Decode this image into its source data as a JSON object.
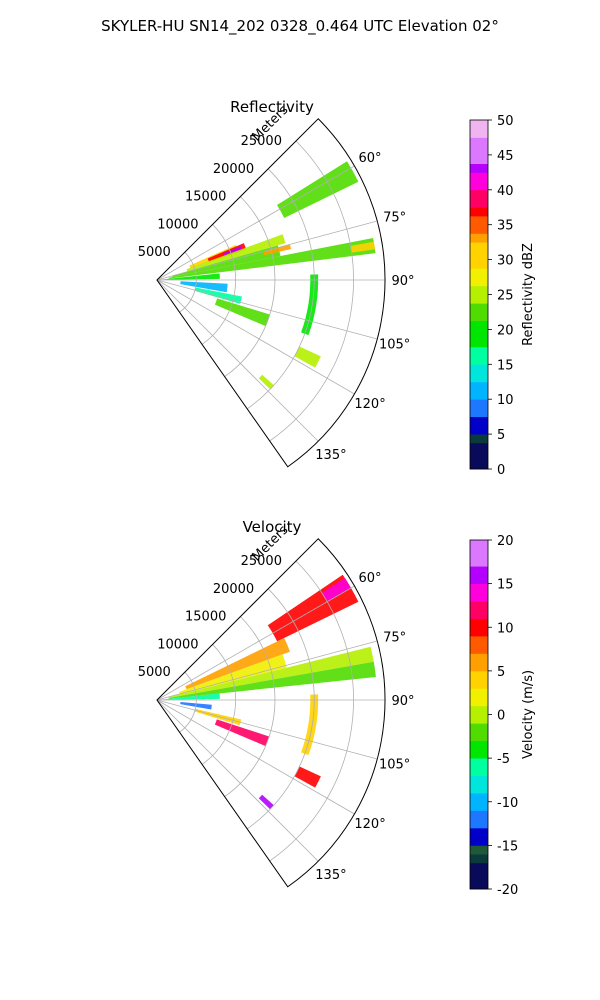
{
  "figure": {
    "title": "SKYLER-HU  SN14_202  0328_0.464 UTC Elevation 02°"
  },
  "chart_data": [
    {
      "type": "polar_ppi",
      "title": "Reflectivity",
      "range_label": "Meters",
      "range_ticks": [
        5000,
        10000,
        15000,
        20000,
        25000
      ],
      "range_max": 29000,
      "azimuth_range": [
        45,
        145
      ],
      "azimuth_ticks": [
        "60°",
        "75°",
        "90°",
        "105°",
        "120°",
        "135°"
      ],
      "azimuth_tick_values": [
        60,
        75,
        90,
        105,
        120,
        135
      ],
      "colorbar": {
        "label": "Reflectivity dBZ",
        "range": [
          0,
          50
        ],
        "ticks": [
          "0",
          "5",
          "10",
          "15",
          "20",
          "25",
          "30",
          "35",
          "40",
          "45",
          "50"
        ]
      },
      "echoes": [
        {
          "az": [
            58,
            64
          ],
          "r": [
            18000,
            28500
          ],
          "value": 22
        },
        {
          "az": [
            66,
            71
          ],
          "r": [
            4500,
            11000
          ],
          "value": 30
        },
        {
          "az": [
            67,
            71
          ],
          "r": [
            7000,
            12000
          ],
          "value": 36
        },
        {
          "az": [
            68,
            70
          ],
          "r": [
            9000,
            11500
          ],
          "value": 42
        },
        {
          "az": [
            70,
            74
          ],
          "r": [
            4000,
            17000
          ],
          "value": 24
        },
        {
          "az": [
            74,
            79
          ],
          "r": [
            2000,
            16000
          ],
          "value": 21
        },
        {
          "az": [
            75,
            77
          ],
          "r": [
            14000,
            17500
          ],
          "value": 33
        },
        {
          "az": [
            79,
            83
          ],
          "r": [
            1500,
            28000
          ],
          "value": 22
        },
        {
          "az": [
            80,
            82
          ],
          "r": [
            25000,
            28000
          ],
          "value": 31
        },
        {
          "az": [
            84,
            89
          ],
          "r": [
            500,
            8000
          ],
          "value": 18
        },
        {
          "az": [
            93,
            100
          ],
          "r": [
            3000,
            9000
          ],
          "value": 12
        },
        {
          "az": [
            101,
            106
          ],
          "r": [
            5000,
            11000
          ],
          "value": 17
        },
        {
          "az": [
            107,
            113
          ],
          "r": [
            8000,
            15000
          ],
          "value": 21
        },
        {
          "az": [
            115,
            119
          ],
          "r": [
            20000,
            23000
          ],
          "value": 24
        },
        {
          "az": [
            132,
            134
          ],
          "r": [
            18000,
            20000
          ],
          "value": 25
        },
        {
          "az": [
            88,
            110
          ],
          "r": [
            19500,
            20500
          ],
          "value": 20
        }
      ]
    },
    {
      "type": "polar_ppi",
      "title": "Velocity",
      "range_label": "Meters",
      "range_ticks": [
        5000,
        10000,
        15000,
        20000,
        25000
      ],
      "range_max": 29000,
      "azimuth_range": [
        45,
        145
      ],
      "azimuth_ticks": [
        "60°",
        "75°",
        "90°",
        "105°",
        "120°",
        "135°"
      ],
      "azimuth_tick_values": [
        60,
        75,
        90,
        105,
        120,
        135
      ],
      "colorbar": {
        "label": "Velocity (m/s)",
        "range": [
          -20,
          20
        ],
        "ticks": [
          "-20",
          "-15",
          "-10",
          "-5",
          "0",
          "5",
          "10",
          "15",
          "20"
        ]
      },
      "echoes": [
        {
          "az": [
            56,
            64
          ],
          "r": [
            17000,
            28500
          ],
          "value": 10
        },
        {
          "az": [
            57,
            60
          ],
          "r": [
            25000,
            28500
          ],
          "value": 14
        },
        {
          "az": [
            64,
            70
          ],
          "r": [
            4000,
            18000
          ],
          "value": 6
        },
        {
          "az": [
            70,
            76
          ],
          "r": [
            3000,
            17000
          ],
          "value": 2
        },
        {
          "az": [
            76,
            80
          ],
          "r": [
            1500,
            28000
          ],
          "value": 0
        },
        {
          "az": [
            80,
            84
          ],
          "r": [
            1500,
            28000
          ],
          "value": -3
        },
        {
          "az": [
            84,
            89
          ],
          "r": [
            500,
            8000
          ],
          "value": -6
        },
        {
          "az": [
            95,
            100
          ],
          "r": [
            3000,
            7000
          ],
          "value": -12
        },
        {
          "az": [
            103,
            107
          ],
          "r": [
            5000,
            11000
          ],
          "value": 3
        },
        {
          "az": [
            108,
            113
          ],
          "r": [
            8000,
            15000
          ],
          "value": 12
        },
        {
          "az": [
            115,
            119
          ],
          "r": [
            20000,
            23000
          ],
          "value": 10
        },
        {
          "az": [
            132,
            134
          ],
          "r": [
            18000,
            20000
          ],
          "value": 15
        },
        {
          "az": [
            88,
            110
          ],
          "r": [
            19500,
            20500
          ],
          "value": 4
        }
      ]
    }
  ]
}
